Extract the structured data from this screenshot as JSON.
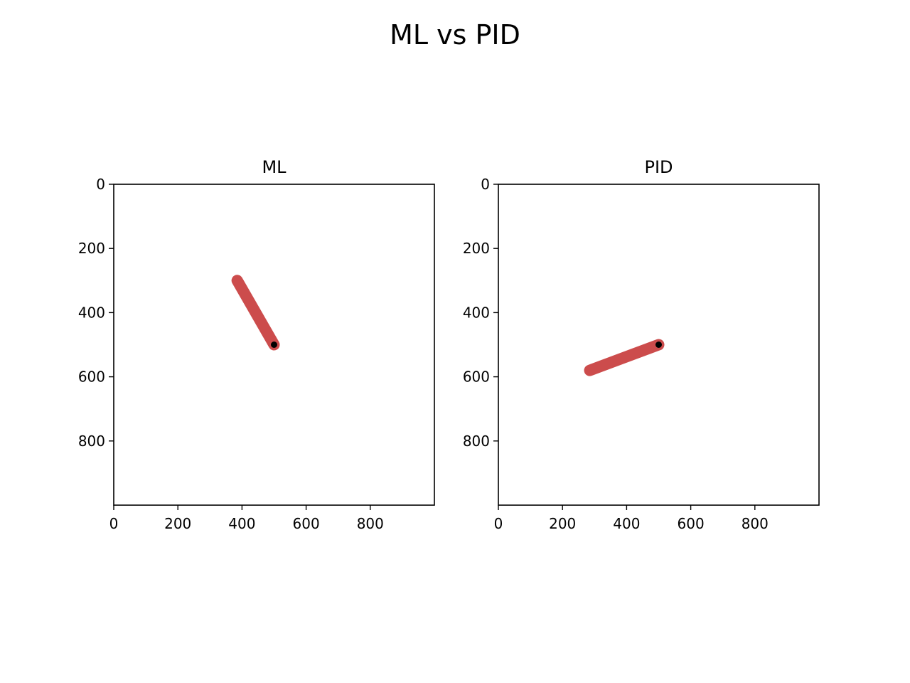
{
  "figure": {
    "title": "ML vs PID"
  },
  "chart_data": [
    {
      "type": "line",
      "title": "ML",
      "xlim": [
        0,
        1000
      ],
      "ylim": [
        1000,
        0
      ],
      "y_inverted": true,
      "xticks": [
        0,
        200,
        400,
        600,
        800
      ],
      "yticks": [
        0,
        200,
        400,
        600,
        800
      ],
      "series": [
        {
          "role": "pendulum-rod",
          "color": "#cc4c4c",
          "x": [
            500,
            385
          ],
          "y": [
            500,
            300
          ]
        },
        {
          "role": "pivot-point",
          "color": "#000000",
          "x": [
            500
          ],
          "y": [
            500
          ]
        }
      ]
    },
    {
      "type": "line",
      "title": "PID",
      "xlim": [
        0,
        1000
      ],
      "ylim": [
        1000,
        0
      ],
      "y_inverted": true,
      "xticks": [
        0,
        200,
        400,
        600,
        800
      ],
      "yticks": [
        0,
        200,
        400,
        600,
        800
      ],
      "series": [
        {
          "role": "pendulum-rod",
          "color": "#cc4c4c",
          "x": [
            500,
            285
          ],
          "y": [
            500,
            580
          ]
        },
        {
          "role": "pivot-point",
          "color": "#000000",
          "x": [
            500
          ],
          "y": [
            500
          ]
        }
      ]
    }
  ]
}
